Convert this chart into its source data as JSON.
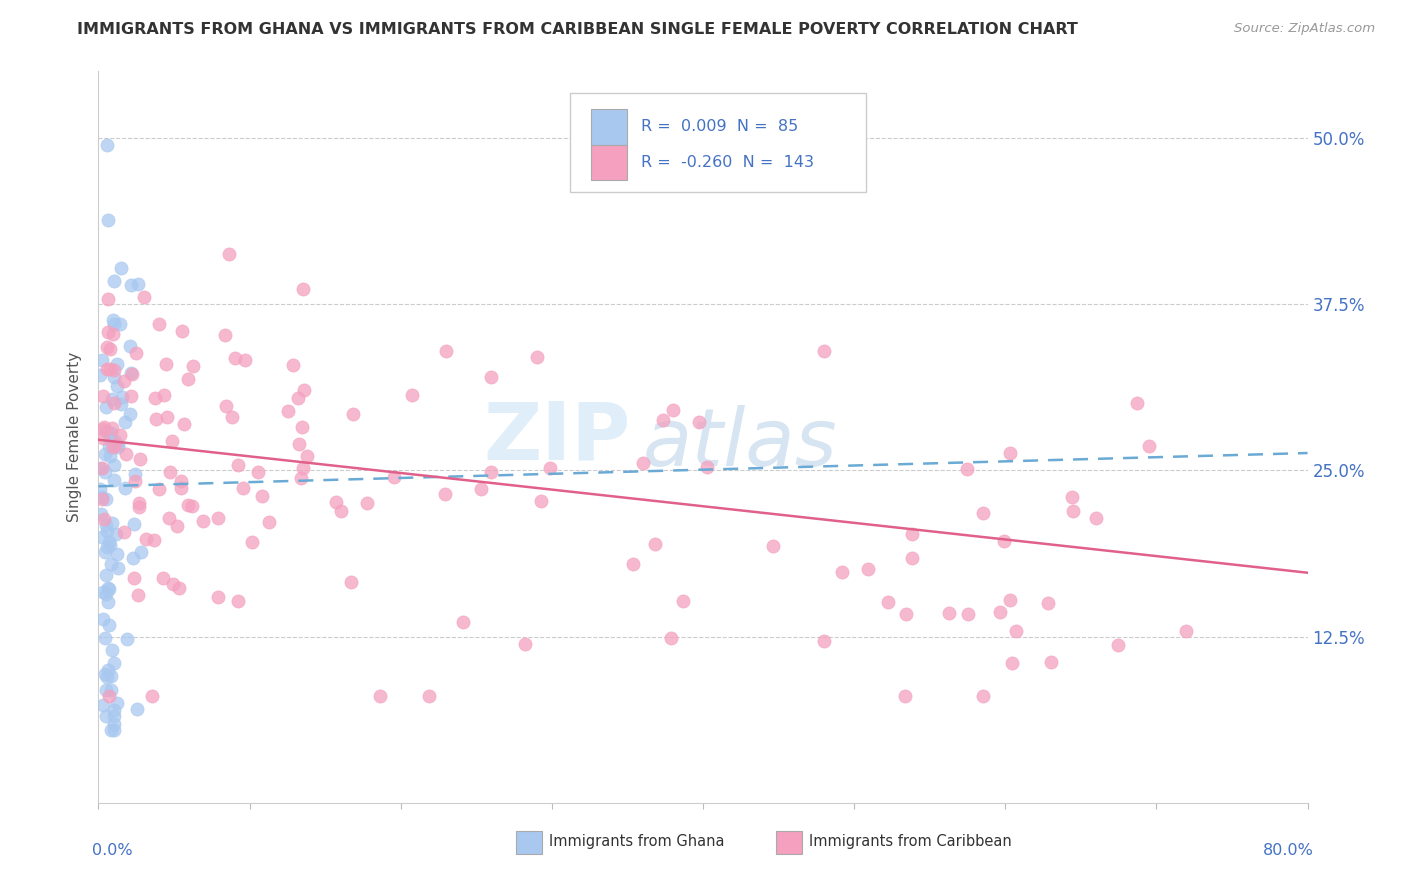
{
  "title": "IMMIGRANTS FROM GHANA VS IMMIGRANTS FROM CARIBBEAN SINGLE FEMALE POVERTY CORRELATION CHART",
  "source": "Source: ZipAtlas.com",
  "ylabel": "Single Female Poverty",
  "ytick_values": [
    0.125,
    0.25,
    0.375,
    0.5
  ],
  "xlim": [
    0.0,
    0.8
  ],
  "ylim": [
    0.0,
    0.55
  ],
  "ghana_color": "#a8c8f0",
  "caribbean_color": "#f4a0be",
  "ghana_line_color": "#6aaad4",
  "caribbean_line_color": "#e0608a",
  "legend_ghana_R": "0.009",
  "legend_ghana_N": "85",
  "legend_caribbean_R": "-0.260",
  "legend_caribbean_N": "143",
  "legend_text_color": "#4472c4",
  "axis_label_color": "#4472c4",
  "title_color": "#333333",
  "source_color": "#999999"
}
